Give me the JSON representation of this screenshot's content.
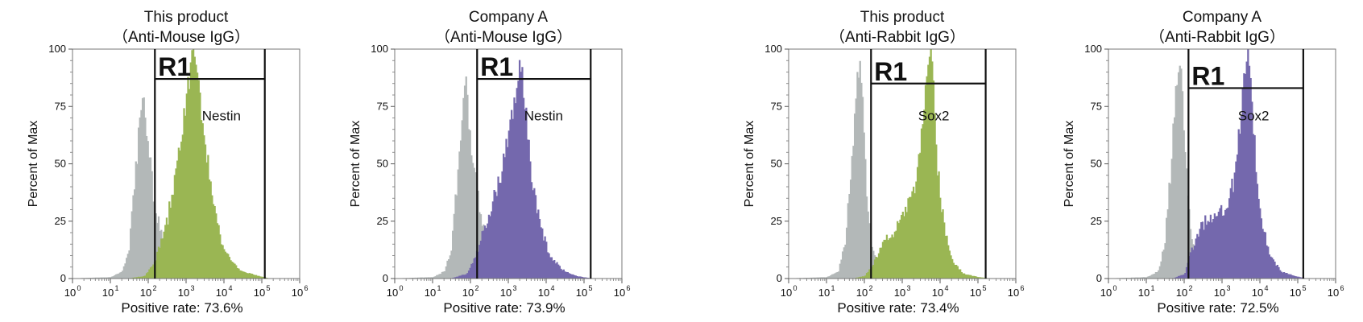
{
  "chart_data": [
    {
      "type": "area",
      "title": "This product",
      "subtitle": "（Anti-Mouse IgG）",
      "ylabel": "Percent of Max",
      "xscale": "log",
      "xlim": [
        1,
        1000000
      ],
      "ylim": [
        0,
        100
      ],
      "yticks": [
        "0",
        "25",
        "50",
        "75",
        "100"
      ],
      "xticks": [
        {
          "base": "10",
          "exp": "0"
        },
        {
          "base": "10",
          "exp": "1"
        },
        {
          "base": "10",
          "exp": "2"
        },
        {
          "base": "10",
          "exp": "3"
        },
        {
          "base": "10",
          "exp": "4"
        },
        {
          "base": "10",
          "exp": "5"
        },
        {
          "base": "10",
          "exp": "6"
        }
      ],
      "gate": {
        "label": "R1",
        "x_range": [
          150,
          120000
        ],
        "height": 87
      },
      "marker": "Nestin",
      "positive_rate": "Positive rate: 73.6%",
      "series": [
        {
          "role": "control",
          "color": "#b3b8b8",
          "points": [
            [
              1,
              0
            ],
            [
              10,
              0.5
            ],
            [
              20,
              3
            ],
            [
              30,
              12
            ],
            [
              45,
              45
            ],
            [
              60,
              72
            ],
            [
              70,
              85
            ],
            [
              80,
              68
            ],
            [
              100,
              55
            ],
            [
              130,
              38
            ],
            [
              150,
              30
            ],
            [
              200,
              22
            ],
            [
              300,
              12
            ],
            [
              500,
              5
            ],
            [
              1000,
              2
            ],
            [
              3000,
              0.5
            ],
            [
              20000,
              0
            ],
            [
              1000000,
              0
            ]
          ]
        },
        {
          "role": "sample",
          "color": "#9ab653",
          "points": [
            [
              1,
              0
            ],
            [
              30,
              0
            ],
            [
              80,
              1
            ],
            [
              150,
              8
            ],
            [
              300,
              24
            ],
            [
              500,
              44
            ],
            [
              800,
              68
            ],
            [
              1200,
              88
            ],
            [
              1500,
              100
            ],
            [
              2000,
              86
            ],
            [
              3000,
              60
            ],
            [
              5000,
              33
            ],
            [
              8000,
              17
            ],
            [
              15000,
              7
            ],
            [
              30000,
              3
            ],
            [
              80000,
              1
            ],
            [
              150000,
              0
            ],
            [
              1000000,
              0
            ]
          ]
        }
      ]
    },
    {
      "type": "area",
      "title": "Company A",
      "subtitle": "（Anti-Mouse IgG）",
      "ylabel": "Percent of Max",
      "xscale": "log",
      "xlim": [
        1,
        1000000
      ],
      "ylim": [
        0,
        100
      ],
      "yticks": [
        "0",
        "25",
        "50",
        "75",
        "100"
      ],
      "xticks": [
        {
          "base": "10",
          "exp": "0"
        },
        {
          "base": "10",
          "exp": "1"
        },
        {
          "base": "10",
          "exp": "2"
        },
        {
          "base": "10",
          "exp": "3"
        },
        {
          "base": "10",
          "exp": "4"
        },
        {
          "base": "10",
          "exp": "5"
        },
        {
          "base": "10",
          "exp": "6"
        }
      ],
      "gate": {
        "label": "R1",
        "x_range": [
          150,
          150000
        ],
        "height": 87
      },
      "marker": "Nestin",
      "positive_rate": "Positive rate: 73.9%",
      "series": [
        {
          "role": "control",
          "color": "#b3b8b8",
          "points": [
            [
              1,
              0
            ],
            [
              10,
              0.5
            ],
            [
              20,
              3
            ],
            [
              30,
              12
            ],
            [
              45,
              45
            ],
            [
              60,
              75
            ],
            [
              70,
              90
            ],
            [
              85,
              70
            ],
            [
              110,
              50
            ],
            [
              150,
              35
            ],
            [
              200,
              24
            ],
            [
              300,
              12
            ],
            [
              500,
              5
            ],
            [
              1000,
              2
            ],
            [
              3000,
              0.5
            ],
            [
              20000,
              0
            ],
            [
              1000000,
              0
            ]
          ]
        },
        {
          "role": "sample",
          "color": "#7468ad",
          "points": [
            [
              1,
              0
            ],
            [
              30,
              0
            ],
            [
              80,
              2
            ],
            [
              150,
              12
            ],
            [
              300,
              28
            ],
            [
              600,
              45
            ],
            [
              1000,
              62
            ],
            [
              1500,
              80
            ],
            [
              2000,
              98
            ],
            [
              2500,
              80
            ],
            [
              4000,
              45
            ],
            [
              7000,
              22
            ],
            [
              12000,
              10
            ],
            [
              25000,
              4
            ],
            [
              60000,
              1
            ],
            [
              150000,
              0
            ],
            [
              1000000,
              0
            ]
          ]
        }
      ]
    },
    {
      "type": "area",
      "title": "This product",
      "subtitle": "（Anti-Rabbit IgG）",
      "ylabel": "Percent of Max",
      "xscale": "log",
      "xlim": [
        1,
        1000000
      ],
      "ylim": [
        0,
        100
      ],
      "yticks": [
        "0",
        "25",
        "50",
        "75",
        "100"
      ],
      "xticks": [
        {
          "base": "10",
          "exp": "0"
        },
        {
          "base": "10",
          "exp": "1"
        },
        {
          "base": "10",
          "exp": "2"
        },
        {
          "base": "10",
          "exp": "3"
        },
        {
          "base": "10",
          "exp": "4"
        },
        {
          "base": "10",
          "exp": "5"
        },
        {
          "base": "10",
          "exp": "6"
        }
      ],
      "gate": {
        "label": "R1",
        "x_range": [
          150,
          160000
        ],
        "height": 85
      },
      "marker": "Sox2",
      "positive_rate": "Positive rate: 73.4%",
      "series": [
        {
          "role": "control",
          "color": "#b3b8b8",
          "points": [
            [
              1,
              0
            ],
            [
              10,
              0.5
            ],
            [
              20,
              3
            ],
            [
              30,
              15
            ],
            [
              45,
              50
            ],
            [
              60,
              85
            ],
            [
              75,
              95
            ],
            [
              90,
              70
            ],
            [
              110,
              40
            ],
            [
              140,
              18
            ],
            [
              200,
              6
            ],
            [
              400,
              2
            ],
            [
              1000,
              0.5
            ],
            [
              5000,
              0
            ],
            [
              1000000,
              0
            ]
          ]
        },
        {
          "role": "sample",
          "color": "#9ab653",
          "points": [
            [
              1,
              0
            ],
            [
              50,
              0
            ],
            [
              100,
              1
            ],
            [
              150,
              5
            ],
            [
              250,
              12
            ],
            [
              400,
              18
            ],
            [
              700,
              22
            ],
            [
              1200,
              28
            ],
            [
              2000,
              40
            ],
            [
              3000,
              60
            ],
            [
              4500,
              88
            ],
            [
              5500,
              100
            ],
            [
              6500,
              82
            ],
            [
              8000,
              52
            ],
            [
              12000,
              24
            ],
            [
              20000,
              8
            ],
            [
              40000,
              2
            ],
            [
              100000,
              0.5
            ],
            [
              200000,
              0
            ],
            [
              1000000,
              0
            ]
          ]
        }
      ]
    },
    {
      "type": "area",
      "title": "Company A",
      "subtitle": "（Anti-Rabbit IgG）",
      "ylabel": "Percent of Max",
      "xscale": "log",
      "xlim": [
        1,
        1000000
      ],
      "ylim": [
        0,
        100
      ],
      "yticks": [
        "0",
        "25",
        "50",
        "75",
        "100"
      ],
      "xticks": [
        {
          "base": "10",
          "exp": "0"
        },
        {
          "base": "10",
          "exp": "1"
        },
        {
          "base": "10",
          "exp": "2"
        },
        {
          "base": "10",
          "exp": "3"
        },
        {
          "base": "10",
          "exp": "4"
        },
        {
          "base": "10",
          "exp": "5"
        },
        {
          "base": "10",
          "exp": "6"
        }
      ],
      "gate": {
        "label": "R1",
        "x_range": [
          130,
          140000
        ],
        "height": 83
      },
      "marker": "Sox2",
      "positive_rate": "Positive rate: 72.5%",
      "series": [
        {
          "role": "control",
          "color": "#b3b8b8",
          "points": [
            [
              1,
              0
            ],
            [
              10,
              0.5
            ],
            [
              20,
              3
            ],
            [
              30,
              15
            ],
            [
              45,
              52
            ],
            [
              60,
              85
            ],
            [
              75,
              97
            ],
            [
              90,
              75
            ],
            [
              110,
              45
            ],
            [
              140,
              20
            ],
            [
              200,
              7
            ],
            [
              400,
              2
            ],
            [
              1000,
              0.5
            ],
            [
              5000,
              0
            ],
            [
              1000000,
              0
            ]
          ]
        },
        {
          "role": "sample",
          "color": "#7468ad",
          "points": [
            [
              1,
              0
            ],
            [
              50,
              0
            ],
            [
              100,
              2
            ],
            [
              150,
              12
            ],
            [
              250,
              22
            ],
            [
              400,
              26
            ],
            [
              700,
              28
            ],
            [
              1200,
              32
            ],
            [
              2000,
              42
            ],
            [
              3000,
              70
            ],
            [
              4000,
              92
            ],
            [
              4800,
              100
            ],
            [
              5800,
              80
            ],
            [
              7500,
              52
            ],
            [
              11000,
              25
            ],
            [
              18000,
              10
            ],
            [
              35000,
              3
            ],
            [
              80000,
              1
            ],
            [
              150000,
              0
            ],
            [
              1000000,
              0
            ]
          ]
        }
      ]
    }
  ]
}
